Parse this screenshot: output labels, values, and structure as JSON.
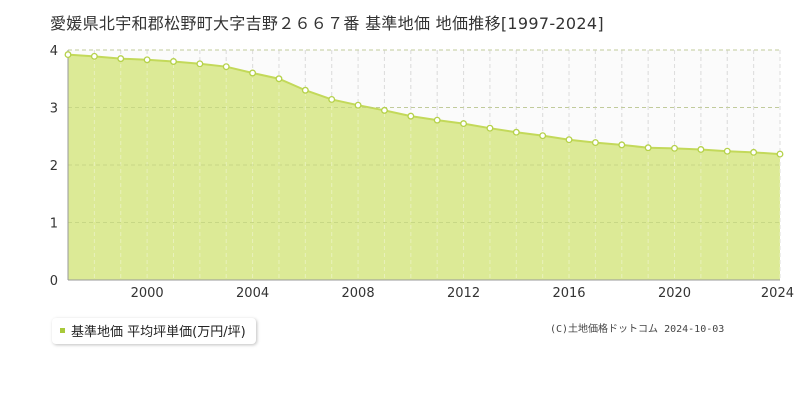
{
  "title": "愛媛県北宇和郡松野町大字吉野２６６７番 基準地価 地価推移[1997-2024]",
  "legend": {
    "label": "基準地価 平均坪単価(万円/坪)"
  },
  "copyright": "(C)土地価格ドットコム 2024-10-03",
  "colors": {
    "area_fill": "#dcea96",
    "line": "#c3d95a",
    "marker_fill": "#ffffff",
    "marker_stroke": "#b5d14a",
    "grid": "#cccccc",
    "axis_text": "#333333",
    "legend_marker": "#a8c93a"
  },
  "chart_data": {
    "type": "area",
    "title": "",
    "xlabel": "",
    "ylabel": "",
    "xlim": [
      1997,
      2024
    ],
    "ylim": [
      0,
      4
    ],
    "x_ticks": [
      "2000",
      "2004",
      "2008",
      "2012",
      "2016",
      "2020",
      "2024"
    ],
    "y_ticks": [
      "0",
      "1",
      "2",
      "3",
      "4"
    ],
    "grid": true,
    "series": [
      {
        "name": "基準地価 平均坪単価(万円/坪)",
        "x": [
          1997,
          1998,
          1999,
          2000,
          2001,
          2002,
          2003,
          2004,
          2005,
          2006,
          2007,
          2008,
          2009,
          2010,
          2011,
          2012,
          2013,
          2014,
          2015,
          2016,
          2017,
          2018,
          2019,
          2020,
          2021,
          2022,
          2023,
          2024
        ],
        "values": [
          3.92,
          3.89,
          3.85,
          3.83,
          3.8,
          3.76,
          3.71,
          3.6,
          3.5,
          3.3,
          3.14,
          3.04,
          2.95,
          2.85,
          2.78,
          2.72,
          2.64,
          2.57,
          2.51,
          2.44,
          2.39,
          2.35,
          2.3,
          2.29,
          2.27,
          2.24,
          2.22,
          2.19
        ]
      }
    ]
  }
}
